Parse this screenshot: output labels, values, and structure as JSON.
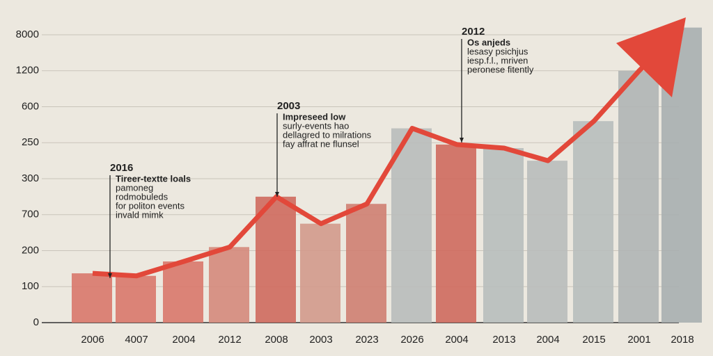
{
  "chart_data": {
    "type": "bar-line",
    "categories": [
      "2006",
      "4007",
      "2004",
      "2012",
      "2008",
      "2003",
      "2023",
      "2026",
      "2004",
      "2013",
      "2004",
      "2015",
      "2001",
      "2018"
    ],
    "values": [
      1.37,
      1.3,
      1.7,
      2.1,
      3.5,
      2.75,
      3.3,
      5.4,
      4.95,
      4.85,
      4.5,
      5.6,
      7.0,
      8.2
    ],
    "line_color": "#e2483a",
    "bar_colors": [
      "#d9786b",
      "#d9786b",
      "#d9786b",
      "#d58a7c",
      "#cf6a5e",
      "#d39a8c",
      "#cf7f72",
      "#b9bcbb",
      "#cf6a5e",
      "#b8bebd",
      "#b9bcbb",
      "#b8bebd",
      "#b0b5b5",
      "#a9afb0"
    ],
    "ylim": [
      0,
      8.6
    ],
    "yticks": [
      {
        "value": 0,
        "label": "0"
      },
      {
        "value": 1,
        "label": "100"
      },
      {
        "value": 2,
        "label": "200"
      },
      {
        "value": 3,
        "label": "700"
      },
      {
        "value": 4,
        "label": "300"
      },
      {
        "value": 5,
        "label": "250"
      },
      {
        "value": 6,
        "label": "600"
      },
      {
        "value": 7,
        "label": "1200"
      },
      {
        "value": 8,
        "label": "8000"
      }
    ],
    "grid": true,
    "annotations": [
      {
        "title": "2016",
        "lines": [
          "Tireer-textte loals",
          "pamoneg",
          "rodmobuleds",
          "for politon events",
          "invald mimk"
        ]
      },
      {
        "title": "2003",
        "lines": [
          "Impreseed low",
          "surly-events hao",
          "dellagred to milrations",
          "fay affrat ne flunsel"
        ]
      },
      {
        "title": "2012",
        "lines": [
          "Os anjeds",
          "lesasy psichjus",
          "iesp.f.l., mriven",
          "peronese fitently"
        ]
      }
    ]
  }
}
